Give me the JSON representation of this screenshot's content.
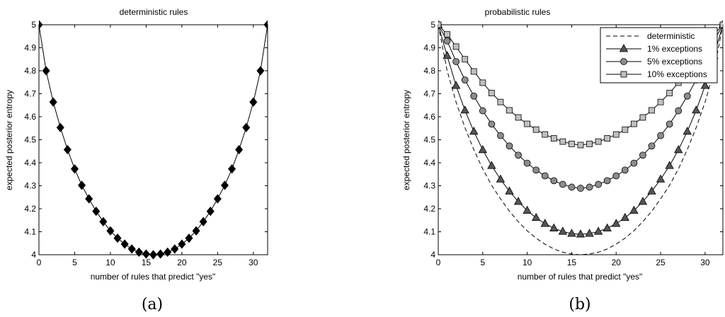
{
  "chart_data": [
    {
      "type": "line",
      "title": "deterministic rules",
      "xlabel": "number of rules that predict \"yes\"",
      "ylabel": "expected posterior entropy",
      "xlim": [
        0,
        32
      ],
      "ylim": [
        4,
        5
      ],
      "xticks": [
        "0",
        "5",
        "10",
        "15",
        "20",
        "25",
        "30"
      ],
      "yticks": [
        "4",
        "4.1",
        "4.2",
        "4.3",
        "4.4",
        "4.5",
        "4.6",
        "4.7",
        "4.8",
        "4.9",
        "5"
      ],
      "grid": false,
      "caption": "(a)",
      "series": [
        {
          "marker": "diamond",
          "color": "#000000",
          "x": [
            0,
            1,
            2,
            3,
            4,
            5,
            6,
            7,
            8,
            9,
            10,
            11,
            12,
            13,
            14,
            15,
            16,
            17,
            18,
            19,
            20,
            21,
            22,
            23,
            24,
            25,
            26,
            27,
            28,
            29,
            30,
            31,
            32
          ],
          "values": [
            5.0,
            4.8,
            4.664,
            4.553,
            4.457,
            4.373,
            4.302,
            4.243,
            4.189,
            4.144,
            4.104,
            4.072,
            4.046,
            4.025,
            4.011,
            4.003,
            4.0,
            4.003,
            4.011,
            4.025,
            4.046,
            4.072,
            4.104,
            4.144,
            4.189,
            4.243,
            4.302,
            4.373,
            4.457,
            4.553,
            4.664,
            4.8,
            5.0
          ]
        }
      ]
    },
    {
      "type": "line",
      "title": "probabilistic rules",
      "xlabel": "number of rules that predict \"yes\"",
      "ylabel": "expected posterior entropy",
      "xlim": [
        0,
        32
      ],
      "ylim": [
        4,
        5
      ],
      "xticks": [
        "0",
        "5",
        "10",
        "15",
        "20",
        "25",
        "30"
      ],
      "yticks": [
        "4",
        "4.1",
        "4.2",
        "4.3",
        "4.4",
        "4.5",
        "4.6",
        "4.7",
        "4.8",
        "4.9",
        "5"
      ],
      "grid": false,
      "caption": "(b)",
      "legend_position": "top-right",
      "series": [
        {
          "name": "deterministic",
          "style": "dashed",
          "color": "#000000",
          "x": [
            0,
            1,
            2,
            3,
            4,
            5,
            6,
            7,
            8,
            9,
            10,
            11,
            12,
            13,
            14,
            15,
            16,
            17,
            18,
            19,
            20,
            21,
            22,
            23,
            24,
            25,
            26,
            27,
            28,
            29,
            30,
            31,
            32
          ],
          "values": [
            5.0,
            4.8,
            4.664,
            4.553,
            4.457,
            4.373,
            4.302,
            4.243,
            4.189,
            4.144,
            4.104,
            4.072,
            4.046,
            4.025,
            4.011,
            4.003,
            4.0,
            4.003,
            4.011,
            4.025,
            4.046,
            4.072,
            4.104,
            4.144,
            4.189,
            4.243,
            4.302,
            4.373,
            4.457,
            4.553,
            4.664,
            4.8,
            5.0
          ]
        },
        {
          "name": "1% exceptions",
          "marker": "triangle",
          "color": "#555555",
          "x": [
            0,
            1,
            2,
            3,
            4,
            5,
            6,
            7,
            8,
            9,
            10,
            11,
            12,
            13,
            14,
            15,
            16,
            17,
            18,
            19,
            20,
            21,
            22,
            23,
            24,
            25,
            26,
            27,
            28,
            29,
            30,
            31,
            32
          ],
          "values": [
            5.0,
            4.865,
            4.735,
            4.628,
            4.536,
            4.456,
            4.387,
            4.328,
            4.276,
            4.231,
            4.192,
            4.161,
            4.135,
            4.115,
            4.101,
            4.092,
            4.089,
            4.092,
            4.101,
            4.115,
            4.135,
            4.161,
            4.192,
            4.231,
            4.276,
            4.328,
            4.387,
            4.456,
            4.536,
            4.628,
            4.735,
            4.865,
            5.0
          ]
        },
        {
          "name": "5% exceptions",
          "marker": "circle",
          "color": "#8c8c8c",
          "x": [
            0,
            1,
            2,
            3,
            4,
            5,
            6,
            7,
            8,
            9,
            10,
            11,
            12,
            13,
            14,
            15,
            16,
            17,
            18,
            19,
            20,
            21,
            22,
            23,
            24,
            25,
            26,
            27,
            28,
            29,
            30,
            31,
            32
          ],
          "values": [
            5.0,
            4.93,
            4.84,
            4.76,
            4.69,
            4.626,
            4.568,
            4.518,
            4.473,
            4.433,
            4.398,
            4.368,
            4.343,
            4.322,
            4.306,
            4.294,
            4.289,
            4.294,
            4.306,
            4.322,
            4.343,
            4.368,
            4.398,
            4.433,
            4.473,
            4.518,
            4.568,
            4.626,
            4.69,
            4.76,
            4.84,
            4.93,
            5.0
          ]
        },
        {
          "name": "10% exceptions",
          "marker": "square",
          "color": "#c0c0c0",
          "x": [
            0,
            1,
            2,
            3,
            4,
            5,
            6,
            7,
            8,
            9,
            10,
            11,
            12,
            13,
            14,
            15,
            16,
            17,
            18,
            19,
            20,
            21,
            22,
            23,
            24,
            25,
            26,
            27,
            28,
            29,
            30,
            31,
            32
          ],
          "values": [
            5.0,
            4.958,
            4.905,
            4.85,
            4.797,
            4.748,
            4.703,
            4.664,
            4.628,
            4.597,
            4.569,
            4.544,
            4.523,
            4.506,
            4.492,
            4.482,
            4.477,
            4.482,
            4.492,
            4.506,
            4.523,
            4.544,
            4.569,
            4.597,
            4.628,
            4.664,
            4.703,
            4.748,
            4.797,
            4.85,
            4.905,
            4.958,
            5.0
          ]
        }
      ]
    }
  ]
}
